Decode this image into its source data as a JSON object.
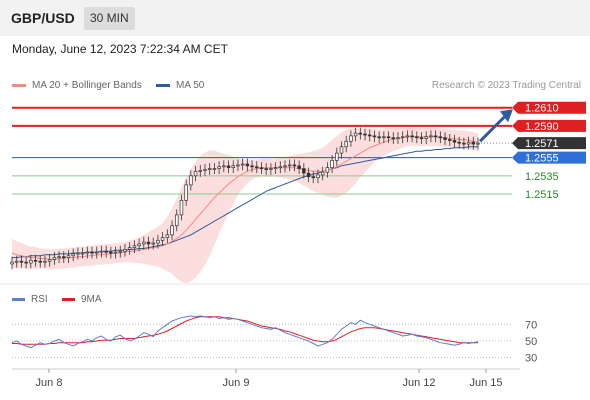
{
  "header": {
    "pair": "GBP/USD",
    "timeframe": "30 MIN"
  },
  "timestamp": "Monday, June 12, 2023 7:22:34 AM CET",
  "legend": {
    "ma20": {
      "label": "MA 20 + Bollinger Bands",
      "color": "#f28b82"
    },
    "ma50": {
      "label": "MA 50",
      "color": "#2e5a9e"
    }
  },
  "credit": "Research © 2023 Trading Central",
  "rsi_legend": {
    "rsi": {
      "label": "RSI",
      "color": "#5b7fd6"
    },
    "ma9": {
      "label": "9MA",
      "color": "#e02020"
    }
  },
  "chart_data": [
    {
      "type": "line",
      "name": "price",
      "x_ticks": [
        "Jun 8",
        "Jun 9",
        "Jun 12",
        "Jun 15"
      ],
      "y_range": [
        1.2428,
        1.2624
      ],
      "levels": [
        {
          "value": 1.261,
          "label": "1.2610",
          "kind": "resistance",
          "color": "#e02020"
        },
        {
          "value": 1.259,
          "label": "1.2590",
          "kind": "resistance",
          "color": "#e02020"
        },
        {
          "value": 1.2571,
          "label": "1.2571",
          "kind": "last",
          "color": "#333333"
        },
        {
          "value": 1.2555,
          "label": "1.2555",
          "kind": "pivot",
          "color": "#2e6fd8"
        },
        {
          "value": 1.2535,
          "label": "1.2535",
          "kind": "support",
          "color": "#2a8a2a"
        },
        {
          "value": 1.2515,
          "label": "1.2515",
          "kind": "support",
          "color": "#2a8a2a"
        }
      ],
      "close": [
        1.244,
        1.2441,
        1.244,
        1.2439,
        1.2442,
        1.2441,
        1.244,
        1.2441,
        1.2443,
        1.2445,
        1.2446,
        1.2445,
        1.2447,
        1.2449,
        1.245,
        1.245,
        1.2451,
        1.245,
        1.2451,
        1.2452,
        1.2451,
        1.245,
        1.2451,
        1.2452,
        1.2454,
        1.2456,
        1.2458,
        1.246,
        1.2462,
        1.246,
        1.2461,
        1.2464,
        1.2467,
        1.247,
        1.248,
        1.2492,
        1.2508,
        1.2525,
        1.2535,
        1.254,
        1.2541,
        1.2542,
        1.2543,
        1.2543,
        1.2545,
        1.2546,
        1.2544,
        1.2546,
        1.2547,
        1.2548,
        1.2546,
        1.2545,
        1.2544,
        1.2543,
        1.2542,
        1.2543,
        1.2544,
        1.2545,
        1.2546,
        1.2547,
        1.2546,
        1.2543,
        1.2538,
        1.2534,
        1.2533,
        1.2536,
        1.2539,
        1.2544,
        1.2552,
        1.256,
        1.2567,
        1.2573,
        1.2579,
        1.2582,
        1.2581,
        1.258,
        1.2579,
        1.2578,
        1.2577,
        1.2578,
        1.2577,
        1.2576,
        1.2577,
        1.2578,
        1.2579,
        1.2578,
        1.2577,
        1.2576,
        1.2578,
        1.2579,
        1.2578,
        1.2577,
        1.2575,
        1.2574,
        1.2572,
        1.2571,
        1.257,
        1.2572,
        1.257,
        1.2571
      ],
      "ma20": [
        1.245,
        1.2448,
        1.2447,
        1.2446,
        1.2445,
        1.2445,
        1.2444,
        1.2444,
        1.2443,
        1.2443,
        1.2444,
        1.2444,
        1.2445,
        1.2445,
        1.2446,
        1.2446,
        1.2447,
        1.2447,
        1.2448,
        1.2448,
        1.2449,
        1.2449,
        1.245,
        1.245,
        1.2451,
        1.2452,
        1.2452,
        1.2453,
        1.2454,
        1.2455,
        1.2456,
        1.2457,
        1.2458,
        1.246,
        1.2463,
        1.2466,
        1.247,
        1.2475,
        1.2481,
        1.2487,
        1.2493,
        1.2499,
        1.2505,
        1.2511,
        1.2516,
        1.2521,
        1.2526,
        1.253,
        1.2534,
        1.2537,
        1.254,
        1.2542,
        1.2543,
        1.2544,
        1.2544,
        1.2544,
        1.2544,
        1.2544,
        1.2544,
        1.2544,
        1.2544,
        1.2543,
        1.2542,
        1.2541,
        1.254,
        1.254,
        1.254,
        1.2541,
        1.2543,
        1.2545,
        1.2548,
        1.2551,
        1.2554,
        1.2557,
        1.256,
        1.2563,
        1.2566,
        1.2568,
        1.257,
        1.2572,
        1.2574,
        1.2575,
        1.2576,
        1.2577,
        1.2578,
        1.2578,
        1.2578,
        1.2578,
        1.2578,
        1.2578,
        1.2578,
        1.2577,
        1.2577,
        1.2576,
        1.2576,
        1.2575,
        1.2575,
        1.2574,
        1.2573,
        1.2572
      ],
      "bb_width": [
        0.0016,
        0.0015,
        0.0014,
        0.0013,
        0.0012,
        0.0012,
        0.0011,
        0.0011,
        0.0011,
        0.0011,
        0.0011,
        0.0011,
        0.0011,
        0.0011,
        0.0011,
        0.0011,
        0.0011,
        0.0011,
        0.0011,
        0.0011,
        0.0011,
        0.0011,
        0.0011,
        0.0011,
        0.0011,
        0.0012,
        0.0013,
        0.0014,
        0.0016,
        0.0018,
        0.002,
        0.0022,
        0.0025,
        0.003,
        0.0036,
        0.0044,
        0.0052,
        0.0058,
        0.0062,
        0.0064,
        0.0064,
        0.0062,
        0.0058,
        0.0052,
        0.0045,
        0.0038,
        0.0032,
        0.0026,
        0.002,
        0.0016,
        0.0013,
        0.0011,
        0.001,
        0.001,
        0.001,
        0.001,
        0.001,
        0.0011,
        0.0012,
        0.0013,
        0.0014,
        0.0016,
        0.0018,
        0.002,
        0.0022,
        0.0024,
        0.0026,
        0.0029,
        0.0032,
        0.0034,
        0.0035,
        0.0035,
        0.0033,
        0.003,
        0.0027,
        0.0024,
        0.0021,
        0.0018,
        0.0016,
        0.0015,
        0.0014,
        0.0013,
        0.0012,
        0.0011,
        0.001,
        0.001,
        0.001,
        0.001,
        0.001,
        0.001,
        0.001,
        0.001,
        0.001,
        0.001,
        0.001,
        0.001,
        0.001,
        0.001,
        0.001,
        0.001
      ],
      "ma50": [
        1.2445,
        1.2445,
        1.2446,
        1.2446,
        1.2447,
        1.2447,
        1.2447,
        1.2448,
        1.2448,
        1.2448,
        1.2449,
        1.2449,
        1.2449,
        1.245,
        1.245,
        1.245,
        1.2451,
        1.2451,
        1.2451,
        1.2452,
        1.2452,
        1.2452,
        1.2453,
        1.2453,
        1.2453,
        1.2454,
        1.2454,
        1.2455,
        1.2455,
        1.2456,
        1.2457,
        1.2458,
        1.2459,
        1.246,
        1.2462,
        1.2464,
        1.2466,
        1.2468,
        1.247,
        1.2473,
        1.2476,
        1.2479,
        1.2482,
        1.2485,
        1.2488,
        1.2491,
        1.2494,
        1.2497,
        1.25,
        1.2503,
        1.2506,
        1.2509,
        1.2512,
        1.2515,
        1.2518,
        1.252,
        1.2522,
        1.2524,
        1.2526,
        1.2528,
        1.253,
        1.2532,
        1.2534,
        1.2535,
        1.2537,
        1.2538,
        1.254,
        1.2541,
        1.2543,
        1.2544,
        1.2546,
        1.2547,
        1.2548,
        1.2549,
        1.255,
        1.2551,
        1.2552,
        1.2553,
        1.2554,
        1.2555,
        1.2556,
        1.2557,
        1.2558,
        1.2559,
        1.256,
        1.2561,
        1.2562,
        1.2562,
        1.2563,
        1.2563,
        1.2564,
        1.2564,
        1.2565,
        1.2565,
        1.2566,
        1.2566,
        1.2566,
        1.2567,
        1.2567,
        1.2567
      ],
      "projection": {
        "from": 1.2573,
        "to": 1.2605
      }
    },
    {
      "type": "line",
      "name": "rsi",
      "y_range": [
        20,
        80
      ],
      "y_ticks": [
        70,
        50,
        30
      ],
      "rsi": [
        48,
        50,
        46,
        44,
        42,
        45,
        48,
        46,
        47,
        50,
        52,
        48,
        46,
        44,
        47,
        49,
        52,
        50,
        54,
        56,
        52,
        50,
        55,
        57,
        53,
        50,
        52,
        56,
        60,
        58,
        55,
        62,
        66,
        70,
        74,
        76,
        78,
        79,
        80,
        79,
        80,
        79,
        78,
        79,
        77,
        78,
        76,
        77,
        76,
        74,
        72,
        70,
        68,
        66,
        65,
        64,
        66,
        63,
        60,
        58,
        56,
        54,
        52,
        50,
        47,
        44,
        46,
        48,
        52,
        58,
        64,
        68,
        72,
        70,
        75,
        72,
        70,
        68,
        66,
        64,
        62,
        60,
        58,
        56,
        57,
        58,
        56,
        55,
        54,
        52,
        50,
        48,
        47,
        46,
        45,
        46,
        48,
        47,
        48,
        49
      ],
      "ma9": [
        47,
        47,
        46,
        46,
        46,
        46,
        46,
        46,
        47,
        47,
        48,
        48,
        48,
        48,
        48,
        48,
        49,
        49,
        50,
        51,
        51,
        51,
        52,
        53,
        53,
        53,
        53,
        54,
        55,
        56,
        57,
        58,
        60,
        62,
        65,
        68,
        71,
        74,
        76,
        78,
        79,
        79,
        79,
        79,
        79,
        78,
        78,
        77,
        76,
        75,
        74,
        72,
        70,
        68,
        67,
        66,
        65,
        64,
        62,
        61,
        59,
        57,
        55,
        53,
        51,
        50,
        49,
        49,
        50,
        52,
        55,
        58,
        61,
        63,
        65,
        66,
        66,
        66,
        65,
        64,
        63,
        62,
        61,
        60,
        59,
        58,
        57,
        56,
        55,
        54,
        53,
        52,
        51,
        50,
        49,
        48,
        48,
        48,
        48,
        48
      ]
    }
  ]
}
